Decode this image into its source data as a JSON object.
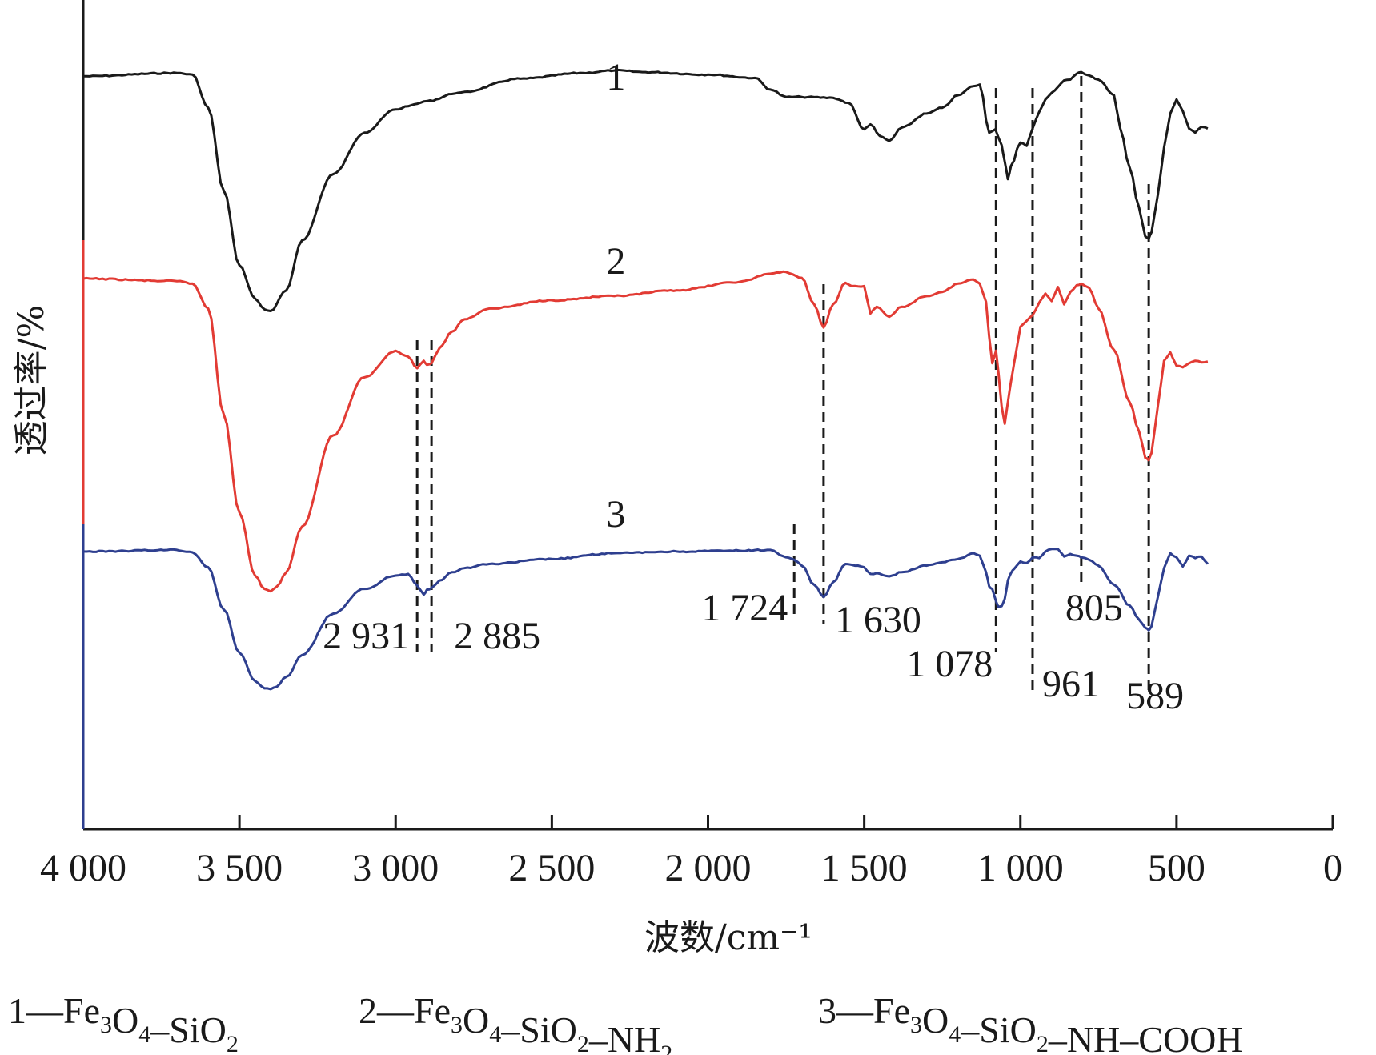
{
  "chart_data": {
    "type": "line",
    "xlabel": "波数/cm⁻¹",
    "ylabel": "透过率/%",
    "xlim": [
      4000,
      0
    ],
    "x_reversed": true,
    "x_ticks": [
      4000,
      3500,
      3000,
      2500,
      2000,
      1500,
      1000,
      500,
      0
    ],
    "x_tick_labels": [
      "4 000",
      "3 500",
      "3 000",
      "2 500",
      "2 000",
      "1 500",
      "1 000",
      "500",
      "0"
    ],
    "ylim": [
      0,
      100
    ],
    "y_ticks_shown": false,
    "series": [
      {
        "name": "1",
        "label": "1",
        "color": "#1a1a1a",
        "x": [
          4000,
          3700,
          3650,
          3600,
          3550,
          3500,
          3450,
          3420,
          3400,
          3350,
          3300,
          3200,
          3100,
          3000,
          2950,
          2900,
          2800,
          2600,
          2400,
          2300,
          2200,
          2000,
          1850,
          1800,
          1750,
          1700,
          1600,
          1550,
          1500,
          1480,
          1450,
          1420,
          1380,
          1300,
          1250,
          1200,
          1150,
          1130,
          1100,
          1080,
          1060,
          1050,
          1040,
          1030,
          1000,
          980,
          961,
          940,
          920,
          900,
          880,
          860,
          840,
          820,
          805,
          780,
          750,
          700,
          680,
          650,
          620,
          600,
          589,
          580,
          560,
          540,
          520,
          500,
          480,
          460,
          440,
          420,
          400
        ],
        "y": [
          90.8,
          91.2,
          91.0,
          87,
          77,
          68,
          64,
          62.7,
          62.5,
          65,
          71,
          79,
          84,
          86.8,
          87.3,
          87.8,
          88.8,
          90.5,
          91.2,
          91.5,
          91.3,
          91.0,
          90.6,
          89.2,
          88.3,
          88.3,
          88.2,
          87.6,
          84.4,
          85.0,
          83.6,
          83.0,
          84.6,
          86.3,
          87.0,
          88.5,
          89.6,
          89.8,
          84.0,
          84.4,
          82.5,
          80.5,
          78.4,
          80.0,
          82.8,
          82.4,
          84.5,
          86.5,
          88.0,
          88.8,
          89.5,
          90.3,
          90.4,
          91.1,
          91.3,
          90.9,
          90.4,
          88.5,
          84.5,
          79.8,
          75.0,
          71.5,
          71.2,
          72.0,
          76.5,
          82.2,
          86.3,
          88.0,
          86.6,
          84.5,
          84.0,
          84.7,
          84.5
        ]
      },
      {
        "name": "2",
        "label": "2",
        "color": "#e23b34",
        "x": [
          4000,
          3700,
          3650,
          3600,
          3550,
          3500,
          3450,
          3420,
          3400,
          3380,
          3350,
          3300,
          3200,
          3100,
          3000,
          2960,
          2931,
          2910,
          2900,
          2885,
          2860,
          2820,
          2780,
          2700,
          2500,
          2300,
          2100,
          1900,
          1800,
          1750,
          1700,
          1660,
          1630,
          1600,
          1560,
          1540,
          1500,
          1480,
          1460,
          1420,
          1380,
          1300,
          1250,
          1200,
          1150,
          1130,
          1110,
          1100,
          1090,
          1078,
          1070,
          1060,
          1050,
          1040,
          1030,
          1020,
          1000,
          980,
          961,
          940,
          920,
          900,
          880,
          860,
          840,
          820,
          805,
          780,
          750,
          700,
          650,
          620,
          600,
          589,
          580,
          560,
          540,
          520,
          500,
          480,
          460,
          440,
          420,
          400
        ],
        "y": [
          66.4,
          66.1,
          65.8,
          62.8,
          50.0,
          38.2,
          30.6,
          29.0,
          28.7,
          29.3,
          31.0,
          36.5,
          47.5,
          54.5,
          57.7,
          57.0,
          55.6,
          56.5,
          56.0,
          56.2,
          58.0,
          60.0,
          61.5,
          62.8,
          63.8,
          64.3,
          65.0,
          66.0,
          67.0,
          67.2,
          66.5,
          63.3,
          60.5,
          63.3,
          65.9,
          65.5,
          65.5,
          62.2,
          63.0,
          61.8,
          63.0,
          64.3,
          64.8,
          65.8,
          66.3,
          65.8,
          63.6,
          59.4,
          56.2,
          57.7,
          55.0,
          51.0,
          48.9,
          51.5,
          54.0,
          56.2,
          60.6,
          61.3,
          62.0,
          63.5,
          64.6,
          63.7,
          65.4,
          63.3,
          64.8,
          65.6,
          65.8,
          65.3,
          62.8,
          57.8,
          51.5,
          48.0,
          44.8,
          44.5,
          45.4,
          51.0,
          56.5,
          57.5,
          55.9,
          55.7,
          56.2,
          56.5,
          56.3,
          56.4
        ]
      },
      {
        "name": "3",
        "label": "3",
        "color": "#2e3f8f",
        "x": [
          4000,
          3700,
          3650,
          3600,
          3550,
          3500,
          3450,
          3420,
          3400,
          3380,
          3350,
          3300,
          3200,
          3100,
          3000,
          2960,
          2931,
          2910,
          2900,
          2885,
          2860,
          2820,
          2780,
          2700,
          2500,
          2300,
          2100,
          1900,
          1800,
          1750,
          1724,
          1700,
          1660,
          1630,
          1600,
          1560,
          1540,
          1500,
          1480,
          1460,
          1420,
          1380,
          1300,
          1250,
          1200,
          1150,
          1130,
          1110,
          1100,
          1090,
          1078,
          1070,
          1060,
          1050,
          1040,
          1030,
          1020,
          1000,
          980,
          961,
          940,
          920,
          900,
          880,
          860,
          840,
          820,
          805,
          780,
          750,
          700,
          650,
          620,
          600,
          589,
          580,
          560,
          540,
          520,
          500,
          480,
          460,
          440,
          420,
          400
        ],
        "y": [
          33.5,
          33.7,
          33.4,
          31.6,
          26.5,
          21.3,
          17.9,
          17.0,
          16.9,
          17.2,
          18.4,
          21.0,
          26.0,
          29.0,
          30.6,
          30.8,
          29.4,
          28.3,
          28.9,
          29.1,
          30.0,
          31.0,
          31.5,
          32.0,
          32.6,
          33.3,
          33.5,
          33.6,
          33.7,
          32.8,
          32.5,
          31.8,
          29.5,
          28.0,
          29.8,
          32.0,
          31.9,
          31.6,
          30.8,
          30.9,
          30.5,
          31.0,
          31.8,
          32.2,
          32.6,
          33.3,
          33.0,
          31.0,
          29.3,
          29.0,
          27.5,
          26.8,
          26.9,
          27.8,
          30.0,
          30.9,
          31.4,
          32.3,
          32.1,
          32.8,
          32.7,
          33.5,
          33.8,
          33.8,
          32.9,
          33.2,
          33.0,
          32.8,
          32.5,
          31.8,
          29.5,
          27.0,
          25.3,
          24.3,
          24.0,
          24.5,
          28.0,
          31.5,
          33.3,
          32.8,
          31.7,
          33.0,
          32.7,
          32.9,
          32.0
        ]
      }
    ],
    "peak_markers": [
      2931,
      2885,
      1724,
      1630,
      1078,
      961,
      805,
      589
    ],
    "peak_labels": [
      {
        "text": "2 931",
        "x": 2931
      },
      {
        "text": "2 885",
        "x": 2885
      },
      {
        "text": "1 724",
        "x": 1724
      },
      {
        "text": "1 630",
        "x": 1630
      },
      {
        "text": "1 078",
        "x": 1078
      },
      {
        "text": "961",
        "x": 961
      },
      {
        "text": "805",
        "x": 805
      },
      {
        "text": "589",
        "x": 589
      }
    ],
    "legend": [
      {
        "num": "1",
        "parts": [
          [
            "Fe",
            ""
          ],
          [
            "3",
            "sub"
          ],
          [
            "O",
            ""
          ],
          [
            "4",
            "sub"
          ],
          [
            "–SiO",
            ""
          ],
          [
            "2",
            "sub"
          ]
        ]
      },
      {
        "num": "2",
        "parts": [
          [
            "Fe",
            ""
          ],
          [
            "3",
            "sub"
          ],
          [
            "O",
            ""
          ],
          [
            "4",
            "sub"
          ],
          [
            "–SiO",
            ""
          ],
          [
            "2",
            "sub"
          ],
          [
            "–NH",
            ""
          ],
          [
            "2",
            "sub"
          ]
        ]
      },
      {
        "num": "3",
        "parts": [
          [
            "Fe",
            ""
          ],
          [
            "3",
            "sub"
          ],
          [
            "O",
            ""
          ],
          [
            "4",
            "sub"
          ],
          [
            "–SiO",
            ""
          ],
          [
            "2",
            "sub"
          ],
          [
            "–NH–COOH",
            ""
          ]
        ]
      }
    ],
    "legend_dash": "—",
    "legend_placement": "bottom",
    "grid": false
  }
}
